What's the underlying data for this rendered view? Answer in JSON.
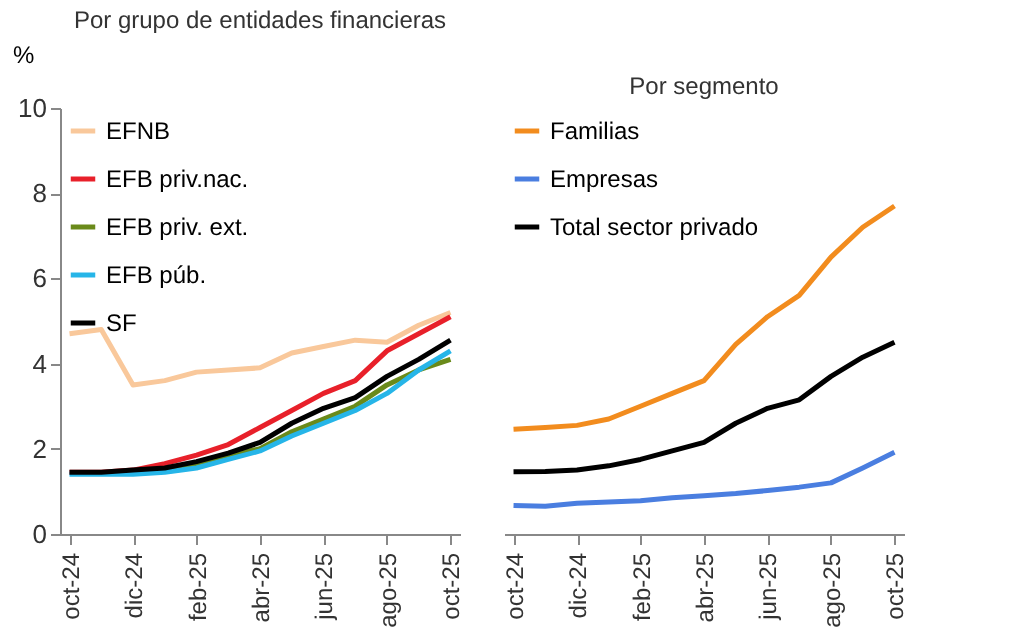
{
  "chart_data": [
    {
      "type": "line",
      "title": "Por grupo de entidades financieras",
      "ylabel": "%",
      "categories": [
        "oct-24",
        null,
        "dic-24",
        null,
        "feb-25",
        null,
        "abr-25",
        null,
        "jun-25",
        null,
        "ago-25",
        null,
        "oct-25"
      ],
      "series": [
        {
          "name": "EFNB",
          "color": "#f9c89b",
          "values": [
            4.7,
            4.8,
            3.5,
            3.6,
            3.8,
            3.85,
            3.9,
            4.25,
            4.4,
            4.55,
            4.5,
            4.9,
            5.2
          ]
        },
        {
          "name": "EFB priv.nac.",
          "color": "#e8202a",
          "values": [
            1.45,
            1.45,
            1.5,
            1.65,
            1.85,
            2.1,
            2.5,
            2.9,
            3.3,
            3.6,
            4.3,
            4.7,
            5.1
          ]
        },
        {
          "name": "EFB priv. ext.",
          "color": "#6a8a1a",
          "values": [
            null,
            null,
            1.45,
            1.5,
            1.65,
            1.85,
            2.0,
            2.4,
            2.7,
            3.0,
            3.5,
            3.85,
            4.1
          ]
        },
        {
          "name": "EFB púb.",
          "color": "#26b5e8",
          "values": [
            1.4,
            1.4,
            1.4,
            1.45,
            1.55,
            1.75,
            1.95,
            2.3,
            2.6,
            2.9,
            3.3,
            3.85,
            4.3
          ]
        },
        {
          "name": "SF",
          "color": "#000000",
          "values": [
            1.45,
            1.45,
            1.5,
            1.55,
            1.7,
            1.9,
            2.15,
            2.6,
            2.95,
            3.2,
            3.7,
            4.1,
            4.55
          ]
        }
      ],
      "ylim": [
        0,
        10
      ],
      "yticks": [
        0,
        2,
        4,
        6,
        8,
        10
      ],
      "legend": "top left"
    },
    {
      "type": "line",
      "title": "Por segmento",
      "categories": [
        "oct-24",
        null,
        "dic-24",
        null,
        "feb-25",
        null,
        "abr-25",
        null,
        "jun-25",
        null,
        "ago-25",
        null,
        "oct-25"
      ],
      "series": [
        {
          "name": "Familias",
          "color": "#f28c1e",
          "values": [
            2.46,
            2.5,
            2.55,
            2.7,
            3.0,
            3.3,
            3.6,
            4.45,
            5.1,
            5.6,
            6.5,
            7.2,
            7.7
          ]
        },
        {
          "name": "Empresas",
          "color": "#4a7ee0",
          "values": [
            0.67,
            0.65,
            0.72,
            0.75,
            0.78,
            0.85,
            0.9,
            0.95,
            1.02,
            1.1,
            1.2,
            1.55,
            1.92
          ]
        },
        {
          "name": "Total sector privado",
          "color": "#000000",
          "values": [
            1.46,
            1.47,
            1.5,
            1.6,
            1.75,
            1.95,
            2.15,
            2.6,
            2.95,
            3.15,
            3.7,
            4.15,
            4.5
          ]
        }
      ],
      "ylim": [
        0,
        10
      ],
      "yticks": [
        0,
        2,
        4,
        6,
        8,
        10
      ],
      "legend": "top left",
      "tick_labels": "x"
    }
  ]
}
